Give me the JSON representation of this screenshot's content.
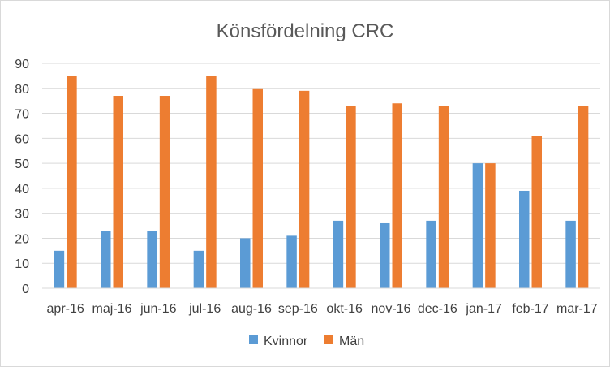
{
  "chart_data": {
    "type": "bar",
    "title": "Könsfördelning CRC",
    "xlabel": "",
    "ylabel": "",
    "ylim": [
      0,
      90
    ],
    "ytick_step": 10,
    "grid": true,
    "legend_position": "bottom",
    "categories": [
      "apr-16",
      "maj-16",
      "jun-16",
      "jul-16",
      "aug-16",
      "sep-16",
      "okt-16",
      "nov-16",
      "dec-16",
      "jan-17",
      "feb-17",
      "mar-17"
    ],
    "series": [
      {
        "name": "Kvinnor",
        "color": "#5B9BD5",
        "values": [
          15,
          23,
          23,
          15,
          20,
          21,
          27,
          26,
          27,
          50,
          39,
          27
        ]
      },
      {
        "name": "Män",
        "color": "#ED7D31",
        "values": [
          85,
          77,
          77,
          85,
          80,
          79,
          73,
          74,
          73,
          50,
          61,
          73
        ]
      }
    ]
  }
}
